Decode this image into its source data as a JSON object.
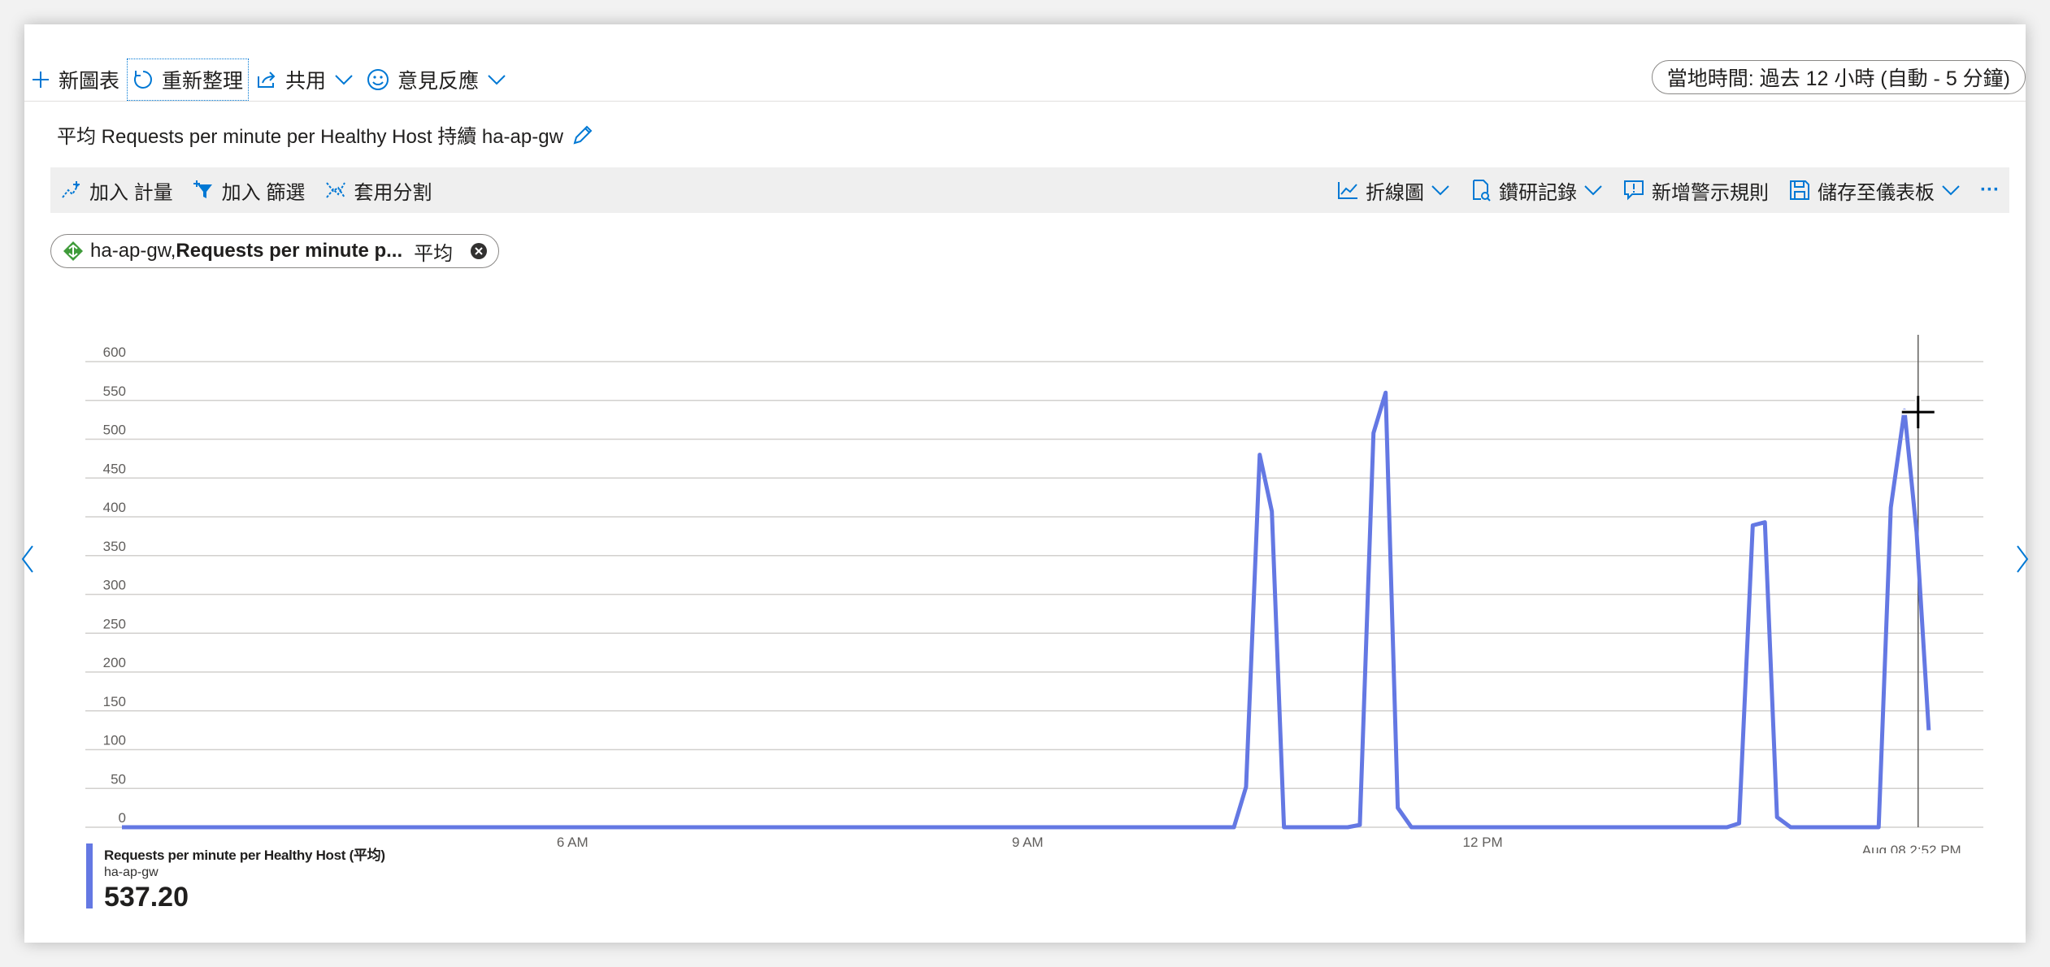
{
  "toolbar": {
    "new_chart": "新圖表",
    "refresh": "重新整理",
    "share": "共用",
    "feedback": "意見反應",
    "time_range": "當地時間: 過去 12 小時 (自動 - 5 分鐘)"
  },
  "chart_title": "平均 Requests per minute per Healthy Host 持續 ha-ap-gw",
  "commands": {
    "add_metric": "加入 計量",
    "add_filter": "加入 篩選",
    "apply_splitting": "套用分割",
    "line_chart": "折線圖",
    "drill_logs": "鑽研記錄",
    "new_alert_rule": "新增警示規則",
    "save_to_dashboard": "儲存至儀表板",
    "more": "···"
  },
  "chip": {
    "resource": "ha-ap-gw,",
    "metric": "Requests per minute p...",
    "aggregation": "平均"
  },
  "legend": {
    "name": "Requests per minute per Healthy Host (平均)",
    "resource": "ha-ap-gw",
    "value": "537.20"
  },
  "colors": {
    "series": "#6478e3",
    "accent": "#0078d4"
  },
  "chart_data": {
    "type": "line",
    "title": "",
    "ylim": [
      0,
      600
    ],
    "y_ticks": [
      0,
      50,
      100,
      150,
      200,
      250,
      300,
      350,
      400,
      450,
      500,
      550,
      600
    ],
    "x_tick_labels": [
      "6 AM",
      "9 AM",
      "12 PM"
    ],
    "x_tick_hours": [
      6,
      9,
      12
    ],
    "xlim_hours": [
      3.03,
      15.3
    ],
    "cursor_label": "Aug 08 2:52 PM",
    "cursor_hour": 14.87,
    "grid": true,
    "series": [
      {
        "name": "Requests per minute per Healthy Host (平均)",
        "x_hours": [
          3.03,
          10.36,
          10.44,
          10.53,
          10.61,
          10.69,
          11.11,
          11.19,
          11.28,
          11.36,
          11.44,
          11.53,
          13.61,
          13.69,
          13.78,
          13.86,
          13.94,
          14.03,
          14.61,
          14.69,
          14.78,
          14.86,
          14.94
        ],
        "values": [
          0,
          0,
          52,
          480,
          407,
          0,
          0,
          3,
          508,
          560,
          25,
          0,
          0,
          5,
          389,
          393,
          13,
          0,
          0,
          412,
          537,
          380,
          125
        ]
      }
    ]
  }
}
